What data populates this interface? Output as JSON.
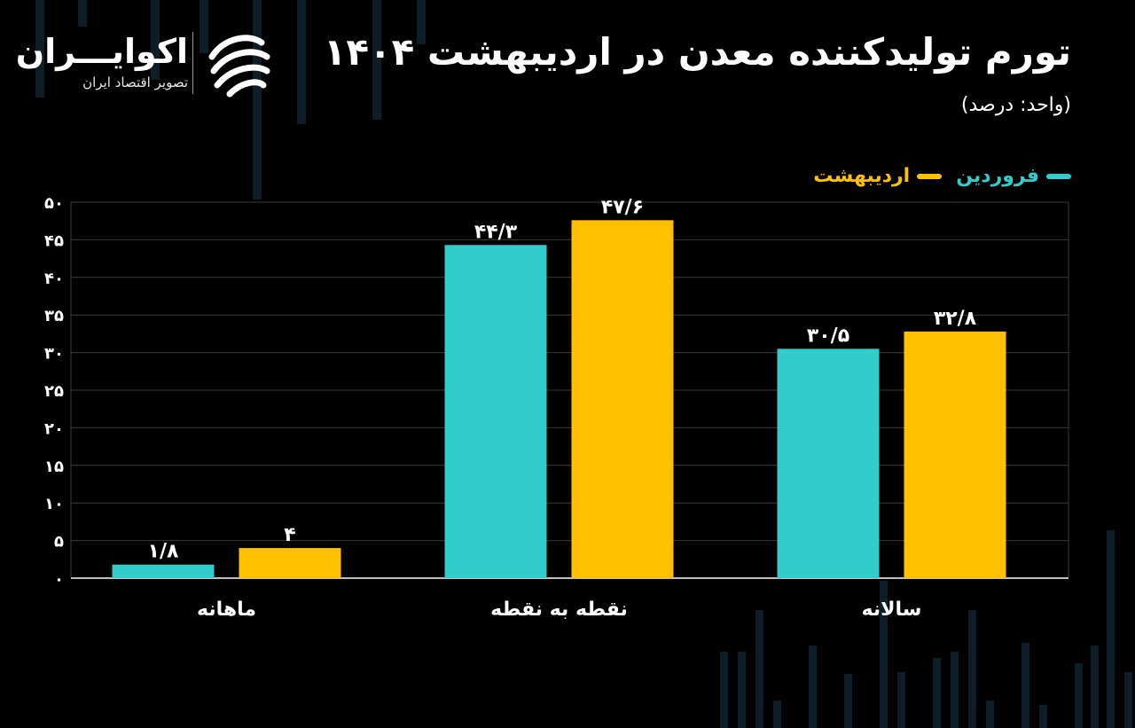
{
  "title": "تورم تولیدکننده معدن در اردیبهشت ۱۴۰۴",
  "unit_note": "(واحد: درصد)",
  "logo": {
    "name": "اکوایـــران",
    "tagline": "تصویر اقتصاد ایران"
  },
  "colors": {
    "background": "#000000",
    "grid": "#3a3a3a",
    "axis": "#bfbfbf",
    "series_1": "#33cccc",
    "series_2": "#ffc000"
  },
  "legend_position": "top-right",
  "chart_data": {
    "type": "bar",
    "categories": [
      "ماهانه",
      "نقطه به نقطه",
      "سالانه"
    ],
    "series": [
      {
        "name": "فروردین",
        "color": "#33cccc",
        "values": [
          1.8,
          44.3,
          30.5
        ],
        "labels": [
          "۱/۸",
          "۴۴/۳",
          "۳۰/۵"
        ]
      },
      {
        "name": "اردیبهشت",
        "color": "#ffc000",
        "values": [
          4,
          47.6,
          32.8
        ],
        "labels": [
          "۴",
          "۴۷/۶",
          "۳۲/۸"
        ]
      }
    ],
    "ylim": [
      0,
      50
    ],
    "y_ticks": [
      0,
      5,
      10,
      15,
      20,
      25,
      30,
      35,
      40,
      45,
      50
    ],
    "y_tick_labels": [
      "۰",
      "۵",
      "۱۰",
      "۱۵",
      "۲۰",
      "۲۵",
      "۳۰",
      "۳۵",
      "۴۰",
      "۴۵",
      "۵۰"
    ],
    "grid": true
  }
}
